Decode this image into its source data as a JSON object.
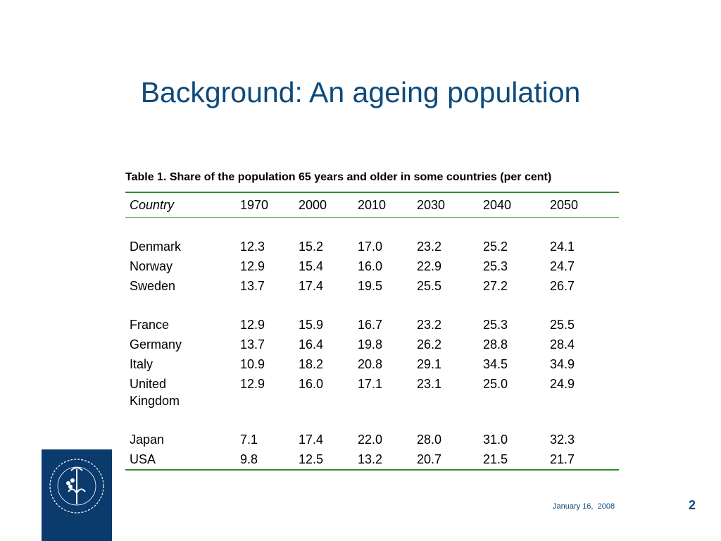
{
  "title": "Background: An ageing population",
  "table": {
    "caption": "Table 1. Share of the population 65 years and older in some countries (per cent)",
    "header": [
      "Country",
      "1970",
      "2000",
      "2010",
      "2030",
      "2040",
      "2050"
    ],
    "groups": [
      [
        [
          "Denmark",
          "12.3",
          "15.2",
          "17.0",
          "23.2",
          "25.2",
          "24.1"
        ],
        [
          "Norway",
          "12.9",
          "15.4",
          "16.0",
          "22.9",
          "25.3",
          "24.7"
        ],
        [
          "Sweden",
          "13.7",
          "17.4",
          "19.5",
          "25.5",
          "27.2",
          "26.7"
        ]
      ],
      [
        [
          "France",
          "12.9",
          "15.9",
          "16.7",
          "23.2",
          "25.3",
          "25.5"
        ],
        [
          "Germany",
          "13.7",
          "16.4",
          "19.8",
          "26.2",
          "28.8",
          "28.4"
        ],
        [
          "Italy",
          "10.9",
          "18.2",
          "20.8",
          "29.1",
          "34.5",
          "34.9"
        ],
        [
          "United Kingdom",
          "12.9",
          "16.0",
          "17.1",
          "23.1",
          "25.0",
          "24.9"
        ]
      ],
      [
        [
          "Japan",
          "7.1",
          "17.4",
          "22.0",
          "28.0",
          "31.0",
          "32.3"
        ],
        [
          "USA",
          "9.8",
          "12.5",
          "13.2",
          "20.7",
          "21.5",
          "21.7"
        ]
      ]
    ]
  },
  "footer": {
    "date": "January 16,  2008",
    "page": "2"
  }
}
